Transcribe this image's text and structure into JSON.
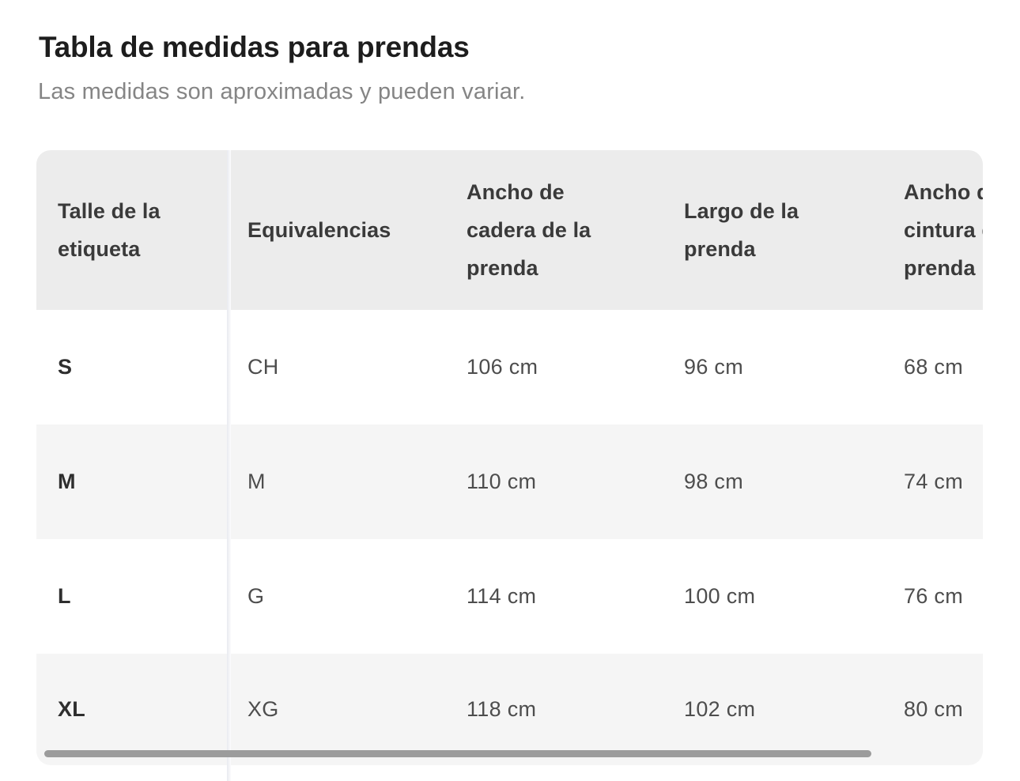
{
  "page": {
    "title": "Tabla de medidas para prendas",
    "subtitle": "Las medidas son aproximadas y pueden variar."
  },
  "table": {
    "columns": [
      "Talle de la etiqueta",
      "Equivalencias",
      "Ancho de cadera de la prenda",
      "Largo de la prenda",
      "Ancho de cintura de la prenda"
    ],
    "rows": [
      {
        "cells": [
          "S",
          "CH",
          "106 cm",
          "96 cm",
          "68 cm"
        ]
      },
      {
        "cells": [
          "M",
          "M",
          "110 cm",
          "98 cm",
          "74 cm"
        ]
      },
      {
        "cells": [
          "L",
          "G",
          "114 cm",
          "100 cm",
          "76 cm"
        ]
      },
      {
        "cells": [
          "XL",
          "XG",
          "118 cm",
          "102 cm",
          "80 cm"
        ]
      }
    ],
    "unit": "cm",
    "note": {
      "last_column_clipped": true,
      "horizontal_scroll_visible": true
    }
  },
  "colors": {
    "header_background": "#ececec",
    "row_alt_background": "#f5f5f5",
    "title_text": "#1d1d1d",
    "subtitle_text": "#858585",
    "cell_text": "#4d4d4d",
    "scrollbar_thumb": "#9c9c9c"
  }
}
